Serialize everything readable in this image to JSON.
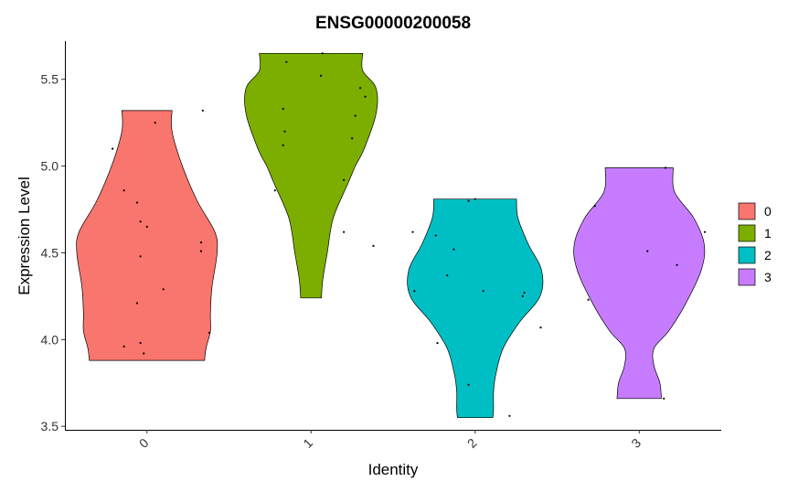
{
  "chart_data": {
    "type": "violin",
    "title": "ENSG00000200058",
    "xlabel": "Identity",
    "ylabel": "Expression Level",
    "categories": [
      "0",
      "1",
      "2",
      "3"
    ],
    "ylim": [
      3.48,
      5.72
    ],
    "yticks": [
      "3.5",
      "4.0",
      "4.5",
      "5.0",
      "5.5"
    ],
    "ytick_values": [
      3.5,
      4.0,
      4.5,
      5.0,
      5.5
    ],
    "legend_position": "right",
    "grid": false,
    "series": [
      {
        "name": "0",
        "color": "#F8766D",
        "range": [
          3.88,
          5.32
        ],
        "profile": [
          [
            3.88,
            0.78
          ],
          [
            3.95,
            0.8
          ],
          [
            4.05,
            0.86
          ],
          [
            4.15,
            0.86
          ],
          [
            4.3,
            0.88
          ],
          [
            4.5,
            0.95
          ],
          [
            4.62,
            0.92
          ],
          [
            4.8,
            0.68
          ],
          [
            5.0,
            0.48
          ],
          [
            5.2,
            0.34
          ],
          [
            5.32,
            0.34
          ]
        ],
        "points": [
          [
            -0.21,
            5.1
          ],
          [
            -0.14,
            4.86
          ],
          [
            0.05,
            5.25
          ],
          [
            0.34,
            5.32
          ],
          [
            -0.06,
            4.79
          ],
          [
            -0.04,
            4.68
          ],
          [
            0.0,
            4.65
          ],
          [
            0.33,
            4.56
          ],
          [
            0.33,
            4.51
          ],
          [
            -0.04,
            4.48
          ],
          [
            0.1,
            4.29
          ],
          [
            -0.06,
            4.21
          ],
          [
            0.38,
            4.04
          ],
          [
            -0.14,
            3.96
          ],
          [
            -0.04,
            3.98
          ],
          [
            -0.02,
            3.92
          ]
        ]
      },
      {
        "name": "1",
        "color": "#7CAE00",
        "range": [
          4.24,
          5.65
        ],
        "profile": [
          [
            4.24,
            0.14
          ],
          [
            4.35,
            0.16
          ],
          [
            4.5,
            0.22
          ],
          [
            4.7,
            0.3
          ],
          [
            4.9,
            0.5
          ],
          [
            5.0,
            0.6
          ],
          [
            5.1,
            0.72
          ],
          [
            5.3,
            0.88
          ],
          [
            5.45,
            0.88
          ],
          [
            5.55,
            0.7
          ],
          [
            5.65,
            0.7
          ]
        ],
        "points": [
          [
            -0.15,
            5.6
          ],
          [
            0.07,
            5.65
          ],
          [
            -0.17,
            5.33
          ],
          [
            0.06,
            5.52
          ],
          [
            0.3,
            5.45
          ],
          [
            0.33,
            5.4
          ],
          [
            -0.16,
            5.2
          ],
          [
            0.27,
            5.29
          ],
          [
            0.25,
            5.16
          ],
          [
            -0.17,
            5.12
          ],
          [
            0.2,
            4.92
          ],
          [
            -0.22,
            4.86
          ],
          [
            0.2,
            4.62
          ],
          [
            0.38,
            4.54
          ]
        ]
      },
      {
        "name": "2",
        "color": "#00BFC4",
        "range": [
          3.55,
          4.81
        ],
        "profile": [
          [
            3.55,
            0.24
          ],
          [
            3.6,
            0.25
          ],
          [
            3.7,
            0.25
          ],
          [
            3.8,
            0.28
          ],
          [
            3.95,
            0.38
          ],
          [
            4.1,
            0.6
          ],
          [
            4.25,
            0.88
          ],
          [
            4.4,
            0.9
          ],
          [
            4.55,
            0.72
          ],
          [
            4.7,
            0.58
          ],
          [
            4.81,
            0.56
          ]
        ],
        "points": [
          [
            -0.38,
            4.62
          ],
          [
            -0.24,
            4.6
          ],
          [
            -0.13,
            4.52
          ],
          [
            -0.17,
            4.37
          ],
          [
            -0.37,
            4.28
          ],
          [
            0.05,
            4.28
          ],
          [
            0.3,
            4.27
          ],
          [
            0.29,
            4.25
          ],
          [
            0.4,
            4.07
          ],
          [
            -0.23,
            3.98
          ],
          [
            -0.04,
            4.8
          ],
          [
            0.0,
            4.81
          ],
          [
            -0.04,
            3.74
          ],
          [
            0.21,
            3.56
          ]
        ]
      },
      {
        "name": "3",
        "color": "#C77CFF",
        "range": [
          3.66,
          4.99
        ],
        "profile": [
          [
            3.66,
            0.3
          ],
          [
            3.75,
            0.28
          ],
          [
            3.85,
            0.2
          ],
          [
            3.95,
            0.2
          ],
          [
            4.05,
            0.4
          ],
          [
            4.2,
            0.62
          ],
          [
            4.4,
            0.84
          ],
          [
            4.55,
            0.88
          ],
          [
            4.7,
            0.74
          ],
          [
            4.85,
            0.48
          ],
          [
            4.99,
            0.46
          ]
        ],
        "points": [
          [
            -0.27,
            4.77
          ],
          [
            0.16,
            4.99
          ],
          [
            0.4,
            4.62
          ],
          [
            0.05,
            4.51
          ],
          [
            0.23,
            4.43
          ],
          [
            -0.31,
            4.23
          ],
          [
            0.15,
            3.66
          ]
        ]
      }
    ]
  }
}
